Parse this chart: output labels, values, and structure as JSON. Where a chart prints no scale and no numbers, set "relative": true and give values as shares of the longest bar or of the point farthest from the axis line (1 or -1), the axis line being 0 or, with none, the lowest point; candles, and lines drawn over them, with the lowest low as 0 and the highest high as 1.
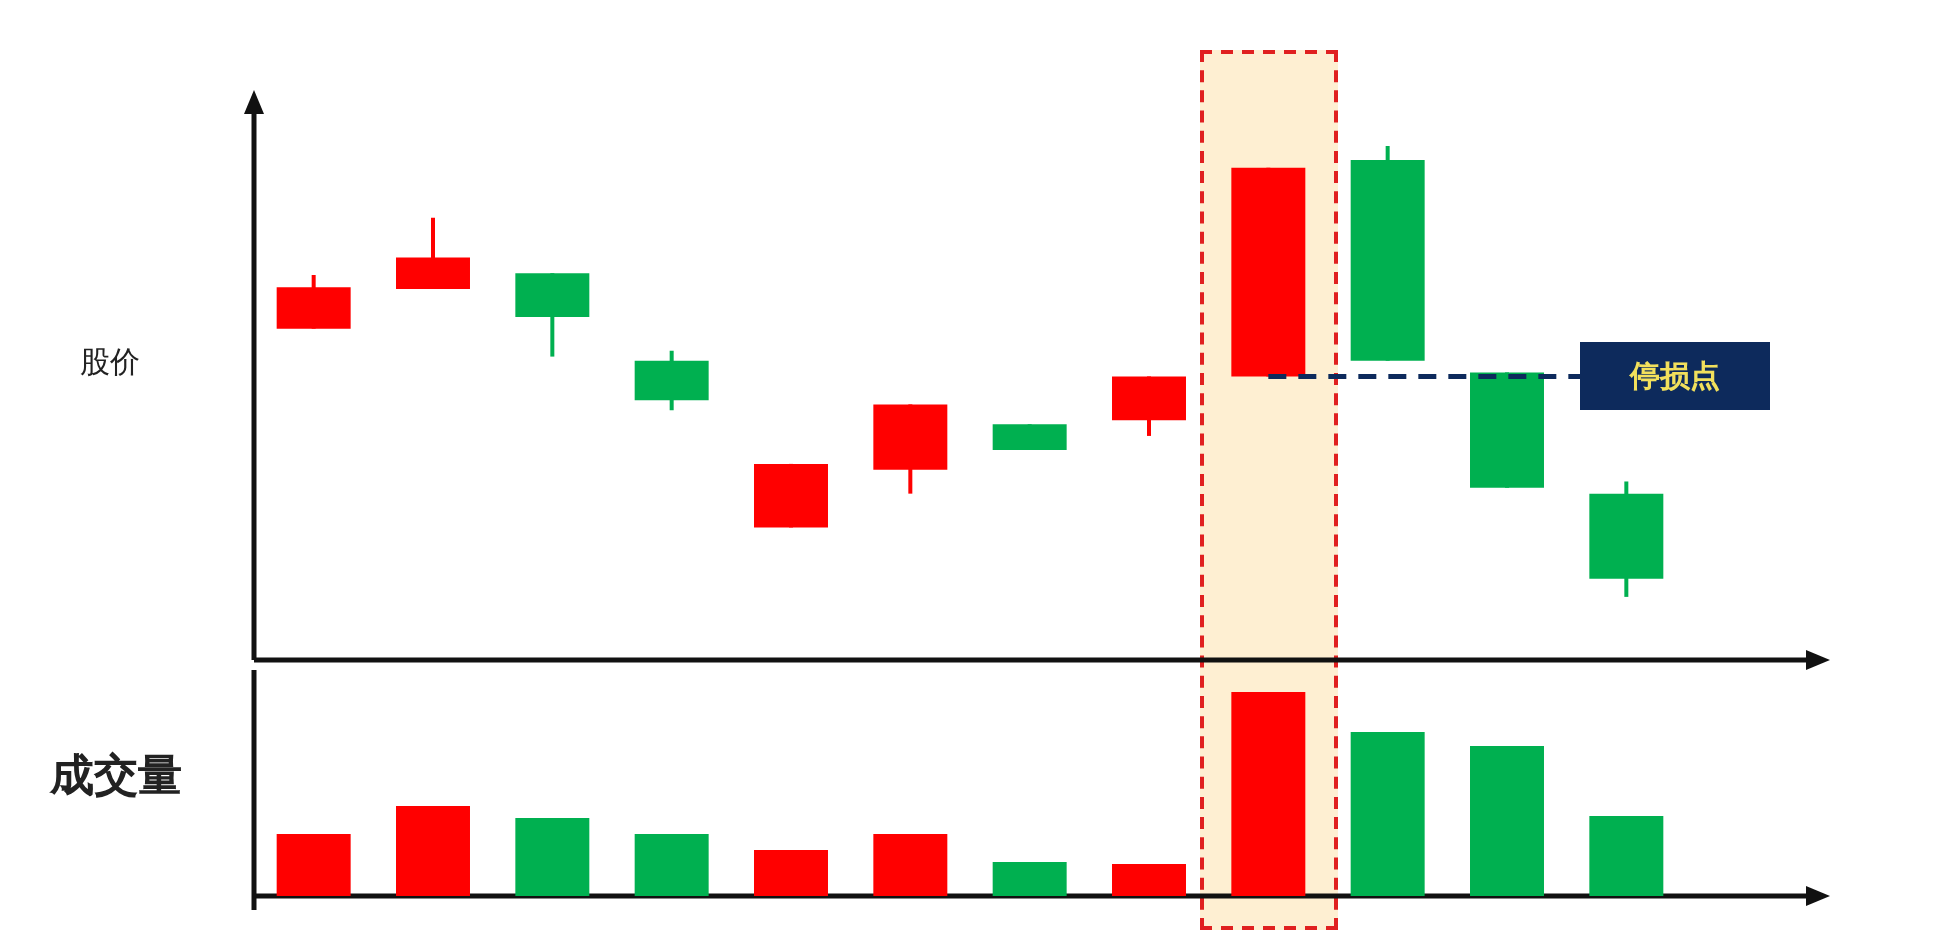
{
  "chart_data": [
    {
      "type": "candlestick",
      "ylabel": "股价",
      "relative": true,
      "categories": [
        null,
        null,
        null,
        null,
        null,
        null,
        null,
        null,
        null,
        null,
        null,
        null
      ],
      "ohlc": [
        [
          0.595,
          0.714,
          0.595,
          0.687
        ],
        [
          0.683,
          0.841,
          0.683,
          0.753
        ],
        [
          0.718,
          0.718,
          0.533,
          0.621
        ],
        [
          0.524,
          0.546,
          0.414,
          0.436
        ],
        [
          0.154,
          0.295,
          0.154,
          0.295
        ],
        [
          0.282,
          0.427,
          0.229,
          0.427
        ],
        [
          0.383,
          0.383,
          0.326,
          0.326
        ],
        [
          0.392,
          0.489,
          0.357,
          0.489
        ],
        [
          0.489,
          0.952,
          0.489,
          0.952
        ],
        [
          0.969,
          1,
          0.524,
          0.524
        ],
        [
          0.498,
          0.498,
          0.242,
          0.242
        ],
        [
          0.229,
          0.256,
          0,
          0.04
        ]
      ],
      "colors": [
        "#ff0000",
        "#ff0000",
        "#00b050",
        "#00b050",
        "#ff0000",
        "#ff0000",
        "#00b050",
        "#ff0000",
        "#ff0000",
        "#00b050",
        "#00b050",
        "#00b050"
      ],
      "ref_lines": [
        {
          "axis": "y",
          "value": 0.489,
          "label": "停损点",
          "color": "#0d2a5c",
          "line_style": "dashed"
        }
      ]
    },
    {
      "type": "bar",
      "ylabel": "成交量",
      "relative": true,
      "categories": [
        null,
        null,
        null,
        null,
        null,
        null,
        null,
        null,
        null,
        null,
        null,
        null
      ],
      "values": [
        0.304,
        0.441,
        0.382,
        0.304,
        0.225,
        0.304,
        0.167,
        0.157,
        1,
        0.804,
        0.735,
        0.392
      ],
      "colors": [
        "#ff0000",
        "#ff0000",
        "#00b050",
        "#00b050",
        "#ff0000",
        "#ff0000",
        "#00b050",
        "#ff0000",
        "#ff0000",
        "#00b050",
        "#00b050",
        "#00b050"
      ]
    }
  ]
}
